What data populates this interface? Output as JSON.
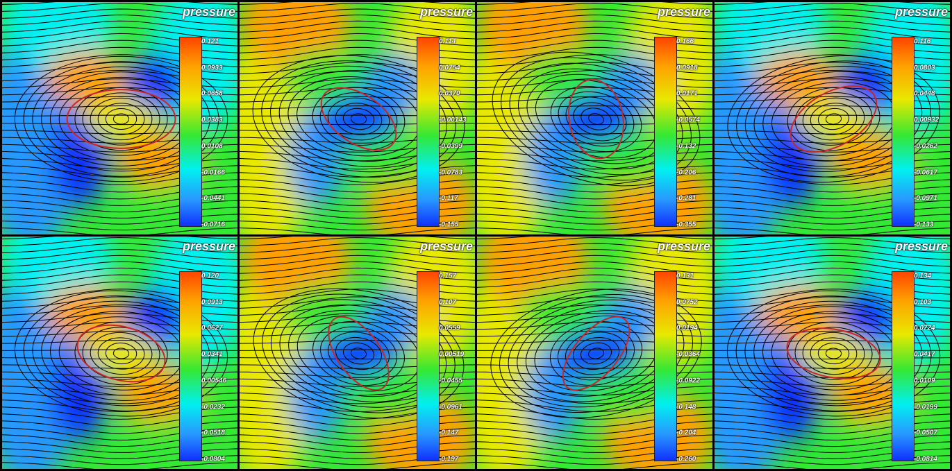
{
  "colors": {
    "colormap": [
      "#ff4400",
      "#ffa000",
      "#e8e800",
      "#34e834",
      "#00f0f0",
      "#2898ff",
      "#1030ff"
    ],
    "streamline": "#000000",
    "interface": "#c62828",
    "frame": "#000000"
  },
  "panels": [
    {
      "title": "pressure",
      "ticks": [
        "0.121",
        "0.0933",
        "0.0658",
        "0.0383",
        "0.0108",
        "-0.0166",
        "-0.0441",
        "-0.0716"
      ],
      "tilt": 0,
      "rx": 0.23,
      "ry": 0.11,
      "style": "center-high"
    },
    {
      "title": "pressure",
      "ticks": [
        "0.114",
        "0.0754",
        "0.0370",
        "-0.00143",
        "-0.0399",
        "-0.0783",
        "-0.117",
        "-0.155"
      ],
      "tilt": 35,
      "rx": 0.18,
      "ry": 0.09,
      "style": "center-low"
    },
    {
      "title": "pressure",
      "ticks": [
        "0.166",
        "0.0918",
        "0.0171",
        "-0.0574",
        "-0.132",
        "-0.206",
        "-0.281",
        "-0.355"
      ],
      "tilt": 80,
      "rx": 0.17,
      "ry": 0.1,
      "style": "center-low"
    },
    {
      "title": "pressure",
      "ticks": [
        "0.116",
        "0.0803",
        "0.0448",
        "0.00932",
        "-0.0262",
        "-0.0617",
        "-0.0971",
        "-0.133"
      ],
      "tilt": -30,
      "rx": 0.2,
      "ry": 0.1,
      "style": "center-high"
    },
    {
      "title": "pressure",
      "ticks": [
        "0.120",
        "0.0913",
        "0.0627",
        "0.0341",
        "0.00546",
        "-0.0232",
        "-0.0518",
        "-0.0804"
      ],
      "tilt": 15,
      "rx": 0.19,
      "ry": 0.1,
      "style": "center-high"
    },
    {
      "title": "pressure",
      "ticks": [
        "0.157",
        "0.107",
        "0.0559",
        "0.00519",
        "-0.0455",
        "-0.0961",
        "-0.147",
        "-0.197"
      ],
      "tilt": 55,
      "rx": 0.18,
      "ry": 0.08,
      "style": "center-low"
    },
    {
      "title": "pressure",
      "ticks": [
        "0.131",
        "0.0752",
        "0.0194",
        "-0.0364",
        "-0.0922",
        "-0.148",
        "-0.204",
        "-0.260"
      ],
      "tilt": -50,
      "rx": 0.19,
      "ry": 0.08,
      "style": "center-low"
    },
    {
      "title": "pressure",
      "ticks": [
        "0.134",
        "0.103",
        "0.0724",
        "0.0417",
        "0.0109",
        "-0.0199",
        "-0.0507",
        "-0.0814"
      ],
      "tilt": 10,
      "rx": 0.2,
      "ry": 0.09,
      "style": "center-high"
    }
  ]
}
